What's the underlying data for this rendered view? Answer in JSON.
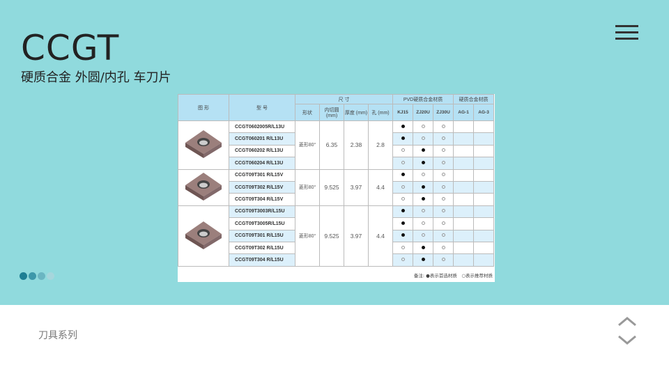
{
  "header": {
    "title": "CCGT",
    "subtitle": "硬质合金 外圆/内孔 车刀片"
  },
  "icons": {
    "menu": "hamburger-menu-icon",
    "nav": "chevron-up-down-icon"
  },
  "colors": {
    "background": "#90dadd",
    "dots": [
      "#1e7f94",
      "#3d98aa",
      "#6bb6c2",
      "#a6d6dc"
    ]
  },
  "table": {
    "headers": {
      "image": "图 形",
      "model": "型 号",
      "size": "尺 寸",
      "pvd": "PVD硬质合金材质",
      "carbide": "硬质合金材质",
      "shape": "形状",
      "ic": "内切圆 (mm)",
      "thickness": "厚度 (mm)",
      "hole": "孔 (mm)",
      "grades": [
        "KJ15",
        "ZJ20U",
        "ZJ30U",
        "AG-1",
        "AG-3"
      ]
    },
    "groups": [
      {
        "shape": "菱形80°",
        "ic": "6.35",
        "thickness": "2.38",
        "hole": "2.8",
        "rows": [
          {
            "model": "CCGT0602005R/L13U",
            "m": [
              1,
              0,
              0
            ]
          },
          {
            "model": "CCGT060201 R/L13U",
            "m": [
              1,
              0,
              0
            ]
          },
          {
            "model": "CCGT060202 R/L13U",
            "m": [
              0,
              1,
              0
            ]
          },
          {
            "model": "CCGT060204 R/L13U",
            "m": [
              0,
              1,
              0
            ]
          }
        ]
      },
      {
        "shape": "菱形80°",
        "ic": "9.525",
        "thickness": "3.97",
        "hole": "4.4",
        "rows": [
          {
            "model": "CCGT09T301 R/L15V",
            "m": [
              1,
              0,
              0
            ]
          },
          {
            "model": "CCGT09T302 R/L15V",
            "m": [
              0,
              1,
              0
            ]
          },
          {
            "model": "CCGT09T304 R/L15V",
            "m": [
              0,
              1,
              0
            ]
          }
        ]
      },
      {
        "shape": "菱形80°",
        "ic": "9.525",
        "thickness": "3.97",
        "hole": "4.4",
        "rows": [
          {
            "model": "CCGT09T3003R/L15U",
            "m": [
              1,
              0,
              0
            ]
          },
          {
            "model": "CCGT09T3005R/L15U",
            "m": [
              1,
              0,
              0
            ]
          },
          {
            "model": "CCGT09T301 R/L15U",
            "m": [
              1,
              0,
              0
            ]
          },
          {
            "model": "CCGT09T302 R/L15U",
            "m": [
              0,
              1,
              0
            ]
          },
          {
            "model": "CCGT09T304 R/L15U",
            "m": [
              0,
              1,
              0
            ]
          }
        ]
      }
    ],
    "note": "备注: ●表示首选材质　○表示推荐材质"
  },
  "footer": {
    "label": "刀具系列"
  }
}
